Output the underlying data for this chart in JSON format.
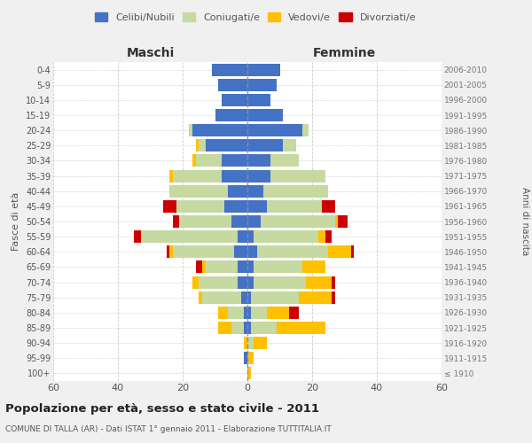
{
  "title": "Popolazione per età, sesso e stato civile - 2011",
  "subtitle": "COMUNE DI TALLA (AR) - Dati ISTAT 1° gennaio 2011 - Elaborazione TUTTITALIA.IT",
  "left_header": "Maschi",
  "right_header": "Femmine",
  "ylabel": "Fasce di età",
  "right_ylabel": "Anni di nascita",
  "age_groups": [
    "100+",
    "95-99",
    "90-94",
    "85-89",
    "80-84",
    "75-79",
    "70-74",
    "65-69",
    "60-64",
    "55-59",
    "50-54",
    "45-49",
    "40-44",
    "35-39",
    "30-34",
    "25-29",
    "20-24",
    "15-19",
    "10-14",
    "5-9",
    "0-4"
  ],
  "birth_years": [
    "≤ 1910",
    "1911-1915",
    "1916-1920",
    "1921-1925",
    "1926-1930",
    "1931-1935",
    "1936-1940",
    "1941-1945",
    "1946-1950",
    "1951-1955",
    "1956-1960",
    "1961-1965",
    "1966-1970",
    "1971-1975",
    "1976-1980",
    "1981-1985",
    "1986-1990",
    "1991-1995",
    "1996-2000",
    "2001-2005",
    "2006-2010"
  ],
  "colors": {
    "celibi": "#4472c4",
    "coniugati": "#c5d9a0",
    "vedovi": "#ffc000",
    "divorziati": "#cc0000"
  },
  "legend_labels": [
    "Celibi/Nubili",
    "Coniugati/e",
    "Vedovi/e",
    "Divorziati/e"
  ],
  "males": {
    "celibi": [
      0,
      1,
      0,
      1,
      1,
      2,
      3,
      3,
      4,
      3,
      5,
      7,
      6,
      8,
      8,
      13,
      17,
      10,
      8,
      9,
      11
    ],
    "coniugati": [
      0,
      0,
      0,
      4,
      5,
      12,
      12,
      10,
      19,
      30,
      16,
      15,
      18,
      15,
      8,
      2,
      1,
      0,
      0,
      0,
      0
    ],
    "vedovi": [
      0,
      0,
      1,
      4,
      3,
      1,
      2,
      1,
      1,
      0,
      0,
      0,
      0,
      1,
      1,
      1,
      0,
      0,
      0,
      0,
      0
    ],
    "divorziati": [
      0,
      0,
      0,
      0,
      0,
      0,
      0,
      2,
      1,
      2,
      2,
      4,
      0,
      0,
      0,
      0,
      0,
      0,
      0,
      0,
      0
    ]
  },
  "females": {
    "nubili": [
      0,
      0,
      0,
      1,
      1,
      1,
      2,
      2,
      3,
      2,
      4,
      6,
      5,
      7,
      7,
      11,
      17,
      11,
      7,
      9,
      10
    ],
    "coniugate": [
      0,
      0,
      2,
      8,
      5,
      15,
      16,
      15,
      22,
      20,
      23,
      17,
      20,
      17,
      9,
      4,
      2,
      0,
      0,
      0,
      0
    ],
    "vedove": [
      1,
      2,
      4,
      15,
      7,
      10,
      8,
      7,
      7,
      2,
      1,
      0,
      0,
      0,
      0,
      0,
      0,
      0,
      0,
      0,
      0
    ],
    "divorziate": [
      0,
      0,
      0,
      0,
      3,
      1,
      1,
      0,
      1,
      2,
      3,
      4,
      0,
      0,
      0,
      0,
      0,
      0,
      0,
      0,
      0
    ]
  },
  "xlim": 60,
  "bg_color": "#f0f0f0",
  "plot_bg": "#ffffff",
  "grid_color": "#cccccc"
}
